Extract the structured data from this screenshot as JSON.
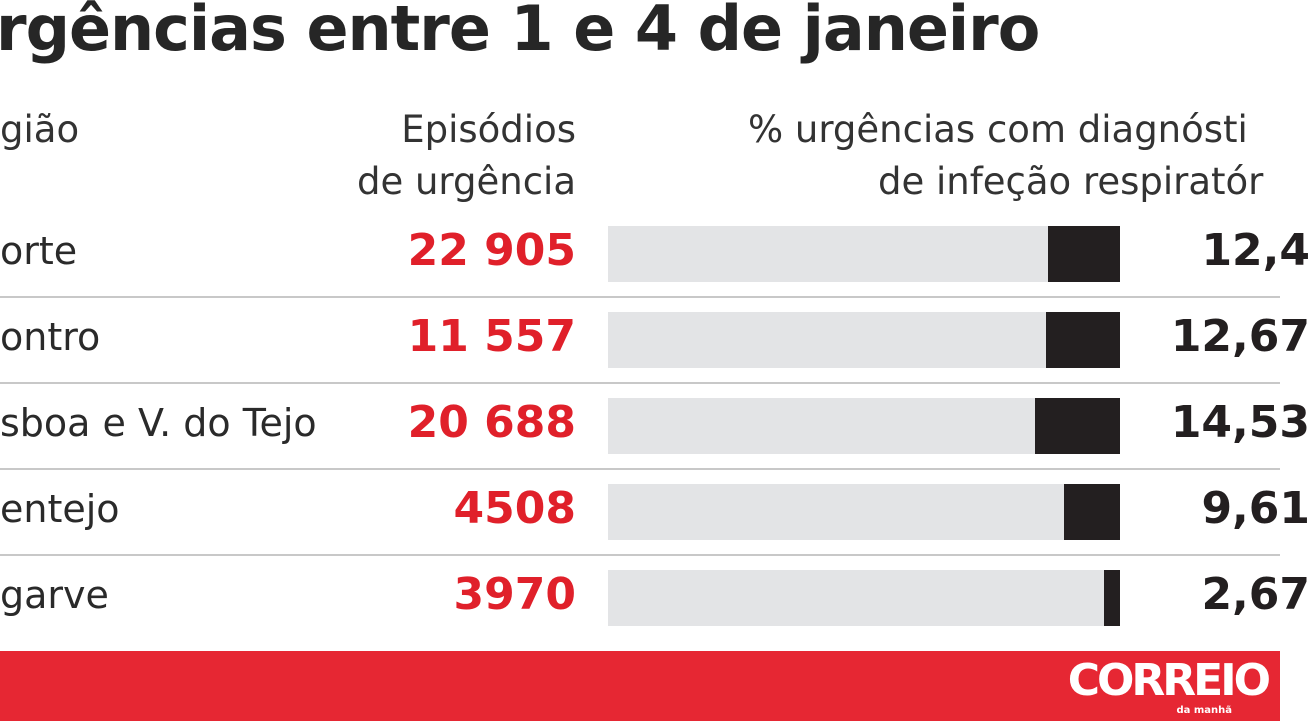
{
  "chart_data": {
    "type": "table",
    "title": "rgências entre 1 e 4 de janeiro",
    "columns": {
      "region": "gião",
      "episodes": [
        "Episódios",
        "de urgência"
      ],
      "pct": [
        "% urgências com diagnósti",
        "de infeção respiratór"
      ]
    },
    "rows": [
      {
        "region": "orte",
        "episodes": "22 905",
        "pct": 12.4,
        "pct_label": "12,4"
      },
      {
        "region": "ontro",
        "episodes": "11 557",
        "pct": 12.67,
        "pct_label": "12,67"
      },
      {
        "region": "sboa e V. do Tejo",
        "episodes": "20 688",
        "pct": 14.53,
        "pct_label": "14,53"
      },
      {
        "region": "entejo",
        "episodes": "4508",
        "pct": 9.61,
        "pct_label": "9,61"
      },
      {
        "region": "garve",
        "episodes": "3970",
        "pct": 2.67,
        "pct_label": "2,67"
      }
    ],
    "bar_max_pct": 88
  },
  "banner": {
    "logo": "CORREIO",
    "logo_sub": "da manhã"
  },
  "colors": {
    "episodes": "#e0202a",
    "bar": "#231f20",
    "track": "#e3e4e6",
    "banner": "#e5202c"
  }
}
